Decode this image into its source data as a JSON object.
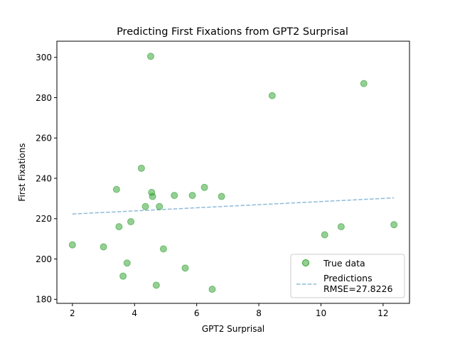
{
  "chart_data": {
    "type": "scatter",
    "title": "Predicting First Fixations from GPT2 Surprisal",
    "xlabel": "GPT2 Surprisal",
    "ylabel": "First Fixations",
    "xlim": [
      1.5,
      12.85
    ],
    "ylim": [
      178,
      308
    ],
    "xticks": [
      2,
      4,
      6,
      8,
      10,
      12
    ],
    "yticks": [
      180,
      200,
      220,
      240,
      260,
      280,
      300
    ],
    "grid": false,
    "legend_position": "lower-right",
    "series": [
      {
        "name": "True data",
        "kind": "scatter",
        "color": "#2ca02c",
        "points": [
          {
            "x": 2.0,
            "y": 207.0
          },
          {
            "x": 3.0,
            "y": 206.0
          },
          {
            "x": 3.42,
            "y": 234.5
          },
          {
            "x": 3.5,
            "y": 216.0
          },
          {
            "x": 3.63,
            "y": 191.5
          },
          {
            "x": 3.76,
            "y": 198.0
          },
          {
            "x": 3.88,
            "y": 218.5
          },
          {
            "x": 4.22,
            "y": 245.0
          },
          {
            "x": 4.35,
            "y": 226.0
          },
          {
            "x": 4.52,
            "y": 300.5
          },
          {
            "x": 4.55,
            "y": 233.0
          },
          {
            "x": 4.58,
            "y": 231.0
          },
          {
            "x": 4.7,
            "y": 187.0
          },
          {
            "x": 4.8,
            "y": 226.0
          },
          {
            "x": 4.93,
            "y": 205.0
          },
          {
            "x": 5.28,
            "y": 231.5
          },
          {
            "x": 5.63,
            "y": 195.5
          },
          {
            "x": 5.86,
            "y": 231.5
          },
          {
            "x": 6.25,
            "y": 235.5
          },
          {
            "x": 6.5,
            "y": 185.0
          },
          {
            "x": 6.8,
            "y": 231.0
          },
          {
            "x": 8.43,
            "y": 281.0
          },
          {
            "x": 10.12,
            "y": 212.0
          },
          {
            "x": 10.65,
            "y": 216.0
          },
          {
            "x": 11.38,
            "y": 287.0
          },
          {
            "x": 12.35,
            "y": 217.0
          }
        ]
      },
      {
        "name": "Predictions\nRMSE=27.8226",
        "kind": "line",
        "style": "dashed",
        "color": "#1f77b4",
        "points": [
          {
            "x": 2.0,
            "y": 222.3
          },
          {
            "x": 12.35,
            "y": 230.3
          }
        ]
      }
    ]
  }
}
